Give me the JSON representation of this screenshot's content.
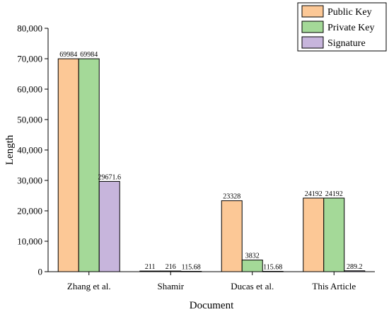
{
  "chart_data": {
    "type": "bar",
    "categories": [
      "Zhang et al.",
      "Shamir",
      "Ducas et al.",
      "This Article"
    ],
    "series": [
      {
        "name": "Public Key",
        "values": [
          69984,
          211,
          23328,
          24192
        ],
        "labels": [
          "69984",
          "211",
          "23328",
          "24192"
        ],
        "color": "#fcc896"
      },
      {
        "name": "Private Key",
        "values": [
          69984,
          216,
          3832,
          24192
        ],
        "labels": [
          "69984",
          "216",
          "3832",
          "24192"
        ],
        "color": "#a4d998"
      },
      {
        "name": "Signature",
        "values": [
          29671.6,
          115.68,
          115.68,
          289.2
        ],
        "labels": [
          "29671.6",
          "115.68",
          "115.68",
          "289.2"
        ],
        "color": "#c7b5dc"
      }
    ],
    "xlabel": "Document",
    "ylabel": "Length",
    "ylim": [
      0,
      80000
    ],
    "yticks": [
      0,
      10000,
      20000,
      30000,
      40000,
      50000,
      60000,
      70000,
      80000
    ],
    "ytick_labels": [
      "0",
      "10,000",
      "20,000",
      "30,000",
      "40,000",
      "50,000",
      "60,000",
      "70,000",
      "80,000"
    ],
    "grid": false,
    "legend_position": "top-right"
  }
}
